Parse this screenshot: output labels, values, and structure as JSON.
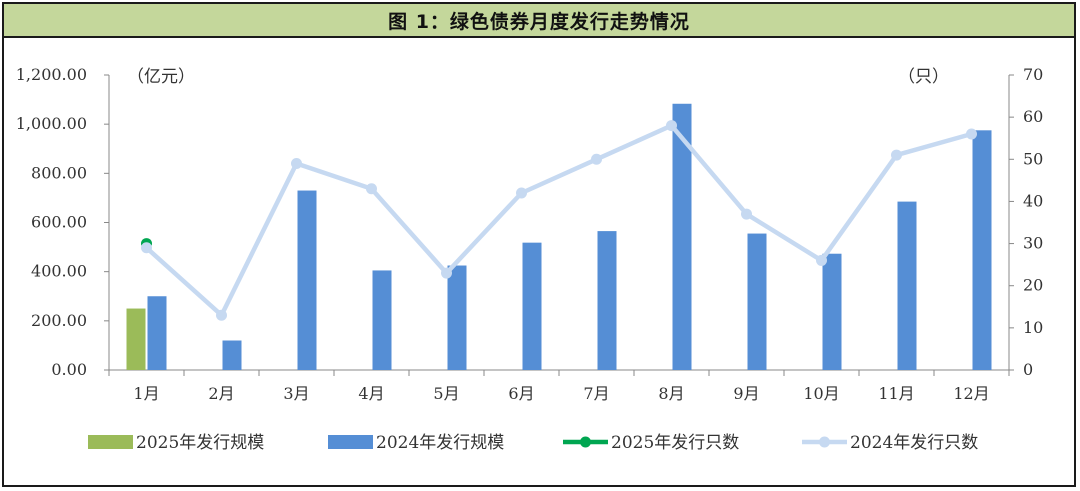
{
  "chart_data": {
    "type": "bar",
    "title": "图 1：绿色债券月度发行走势情况",
    "left_unit": "（亿元）",
    "right_unit": "（只）",
    "categories": [
      "1月",
      "2月",
      "3月",
      "4月",
      "5月",
      "6月",
      "7月",
      "8月",
      "9月",
      "10月",
      "11月",
      "12月"
    ],
    "left_axis": {
      "ylim": [
        0,
        1200
      ],
      "ticks": [
        "0.00",
        "200.00",
        "400.00",
        "600.00",
        "800.00",
        "1,000.00",
        "1,200.00"
      ]
    },
    "right_axis": {
      "ylim": [
        0,
        70
      ],
      "ticks": [
        "0",
        "10",
        "20",
        "30",
        "40",
        "50",
        "60",
        "70"
      ]
    },
    "series": [
      {
        "name": "2025年发行规模",
        "kind": "bar",
        "axis": "left",
        "color": "#9bbb59",
        "values": [
          250,
          null,
          null,
          null,
          null,
          null,
          null,
          null,
          null,
          null,
          null,
          null
        ]
      },
      {
        "name": "2024年发行规模",
        "kind": "bar",
        "axis": "left",
        "color": "#558ed5",
        "values": [
          300,
          120,
          730,
          405,
          425,
          518,
          565,
          1083,
          555,
          473,
          685,
          975
        ]
      },
      {
        "name": "2025年发行只数",
        "kind": "line",
        "axis": "right",
        "color": "#00a651",
        "values": [
          30,
          null,
          null,
          null,
          null,
          null,
          null,
          null,
          null,
          null,
          null,
          null
        ]
      },
      {
        "name": "2024年发行只数",
        "kind": "line",
        "axis": "right",
        "color": "#c6d9f1",
        "values": [
          29,
          13,
          49,
          43,
          23,
          42,
          50,
          58,
          37,
          26,
          51,
          56
        ]
      }
    ],
    "grid": false,
    "legend_position": "bottom"
  }
}
